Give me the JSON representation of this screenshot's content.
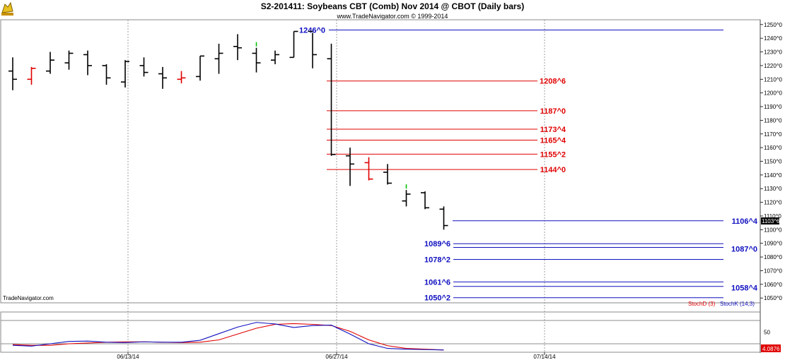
{
  "header": {
    "title": "S2-201411:  Soybeans CBT (Comb) Nov 2014 @ CBOT  (Daily bars)",
    "copyright": "www.TradeNavigator.com © 1999-2014"
  },
  "watermark": "TradeNavigator.com",
  "colors": {
    "bar": "#000000",
    "down_bar": "#e00000",
    "up_bar": "#00c000",
    "red_level": "#e00000",
    "blue_level": "#1010c0",
    "stochD": "#e00000",
    "stochK": "#1010c0",
    "grid": "#888888"
  },
  "chart_data": [
    {
      "type": "ohlc",
      "title": "S2-201411:  Soybeans CBT (Comb) Nov 2014 @ CBOT  (Daily bars)",
      "x_ticks": [
        "06/13/14",
        "06/27/14",
        "07/14/14"
      ],
      "y_ticks": [
        "1250^0",
        "1240^0",
        "1230^0",
        "1220^0",
        "1210^0",
        "1200^0",
        "1190^0",
        "1180^0",
        "1170^0",
        "1160^0",
        "1150^0",
        "1140^0",
        "1130^0",
        "1120^0",
        "1110^0",
        "1100^0",
        "1090^0",
        "1080^0",
        "1070^0",
        "1060^0",
        "1050^0"
      ],
      "y_range": [
        1047,
        1253
      ],
      "last_price": "1103^6",
      "bars": [
        {
          "o": 1216,
          "h": 1226,
          "l": 1202,
          "c": 1210,
          "color": "black"
        },
        {
          "o": 1210,
          "h": 1219,
          "l": 1206,
          "c": 1218,
          "color": "red"
        },
        {
          "o": 1216,
          "h": 1230,
          "l": 1214,
          "c": 1224,
          "color": "black"
        },
        {
          "o": 1222,
          "h": 1231,
          "l": 1217,
          "c": 1229,
          "color": "black"
        },
        {
          "o": 1228,
          "h": 1231,
          "l": 1213,
          "c": 1220,
          "color": "black"
        },
        {
          "o": 1220,
          "h": 1221,
          "l": 1206,
          "c": 1211,
          "color": "black"
        },
        {
          "o": 1208,
          "h": 1224,
          "l": 1204,
          "c": 1223,
          "color": "black"
        },
        {
          "o": 1220,
          "h": 1226,
          "l": 1212,
          "c": 1215,
          "color": "black"
        },
        {
          "o": 1214,
          "h": 1219,
          "l": 1203,
          "c": 1211,
          "color": "black"
        },
        {
          "o": 1210,
          "h": 1216,
          "l": 1207,
          "c": 1211,
          "color": "red"
        },
        {
          "o": 1212,
          "h": 1227,
          "l": 1209,
          "c": 1227,
          "color": "black"
        },
        {
          "o": 1225,
          "h": 1236,
          "l": 1214,
          "c": 1229,
          "color": "black"
        },
        {
          "o": 1234,
          "h": 1243,
          "l": 1224,
          "c": 1233,
          "color": "black"
        },
        {
          "o": 1229,
          "h": 1233,
          "l": 1215,
          "c": 1222,
          "color": "black"
        },
        {
          "o": 1224,
          "h": 1231,
          "l": 1221,
          "c": 1228,
          "color": "black"
        },
        {
          "o": 1226,
          "h": 1245,
          "l": 1226,
          "c": 1245,
          "color": "black"
        },
        {
          "o": 1245,
          "h": 1244,
          "l": 1218,
          "c": 1228,
          "color": "black"
        },
        {
          "o": 1225,
          "h": 1236,
          "l": 1154,
          "c": 1155,
          "color": "black"
        },
        {
          "o": 1154,
          "h": 1160,
          "l": 1132,
          "c": 1148,
          "color": "black"
        },
        {
          "o": 1149,
          "h": 1153,
          "l": 1136,
          "c": 1137,
          "color": "red"
        },
        {
          "o": 1142,
          "h": 1148,
          "l": 1133,
          "c": 1134,
          "color": "black"
        },
        {
          "o": 1121,
          "h": 1129,
          "l": 1117,
          "c": 1126,
          "color": "black"
        },
        {
          "o": 1127,
          "h": 1128,
          "l": 1115,
          "c": 1116,
          "color": "black"
        },
        {
          "o": 1115,
          "h": 1117,
          "l": 1100,
          "c": 1103,
          "color": "black"
        }
      ],
      "levels": [
        {
          "label": "1246^0",
          "value": 1246,
          "color": "blue",
          "label_side": "left"
        },
        {
          "label": "1208^6",
          "value": 1208.75,
          "color": "red",
          "label_side": "right"
        },
        {
          "label": "1187^0",
          "value": 1187,
          "color": "red",
          "label_side": "right"
        },
        {
          "label": "1173^4",
          "value": 1173.5,
          "color": "red",
          "label_side": "right"
        },
        {
          "label": "1165^4",
          "value": 1165.5,
          "color": "red",
          "label_side": "right"
        },
        {
          "label": "1155^2",
          "value": 1155.25,
          "color": "red",
          "label_side": "right"
        },
        {
          "label": "1144^0",
          "value": 1144,
          "color": "red",
          "label_side": "right"
        },
        {
          "label": "1106^4",
          "value": 1106.5,
          "color": "blue",
          "label_side": "far"
        },
        {
          "label": "1089^6",
          "value": 1089.75,
          "color": "blue",
          "label_side": "left"
        },
        {
          "label": "1087^0",
          "value": 1087,
          "color": "blue",
          "label_side": "far"
        },
        {
          "label": "1078^2",
          "value": 1078.25,
          "color": "blue",
          "label_side": "left"
        },
        {
          "label": "1061^6",
          "value": 1061.75,
          "color": "blue",
          "label_side": "left"
        },
        {
          "label": "1058^4",
          "value": 1058.5,
          "color": "blue",
          "label_side": "far"
        },
        {
          "label": "1050^2",
          "value": 1050.25,
          "color": "blue",
          "label_side": "left"
        }
      ]
    },
    {
      "type": "line",
      "legend": [
        "StochD (3)",
        "StochK (14,3)"
      ],
      "y_ticks": [
        "50"
      ],
      "y_range": [
        0,
        100
      ],
      "last_value": "4.0876",
      "series": [
        {
          "name": "StochD (3)",
          "values": [
            18,
            16,
            16,
            20,
            22,
            24,
            25,
            25,
            24,
            23,
            24,
            30,
            45,
            60,
            70,
            72,
            70,
            67,
            52,
            30,
            15,
            8,
            6,
            4
          ]
        },
        {
          "name": "StochK (14,3)",
          "values": [
            16,
            14,
            20,
            26,
            27,
            24,
            23,
            25,
            24,
            24,
            29,
            46,
            63,
            75,
            71,
            62,
            67,
            68,
            45,
            20,
            8,
            6,
            5,
            4
          ]
        }
      ]
    }
  ]
}
